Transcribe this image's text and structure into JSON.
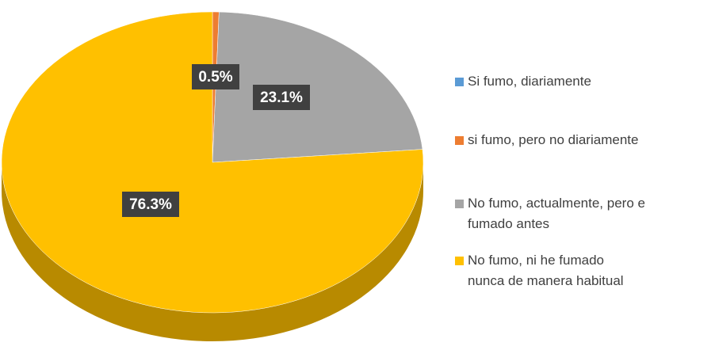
{
  "chart_data": {
    "type": "pie",
    "categories": [
      "Si fumo, diariamente",
      "si fumo, pero no diariamente",
      "No fumo, actualmente, pero e fumado antes",
      "No fumo, ni he fumado nunca de manera habitual"
    ],
    "values": [
      0,
      0.5,
      23.1,
      76.3
    ],
    "value_labels": [
      null,
      "0.5%",
      "23.1%",
      "76.3%"
    ],
    "colors": [
      "#5b9bd5",
      "#ed7d31",
      "#a5a5a5",
      "#ffc000"
    ],
    "legend": "right"
  }
}
